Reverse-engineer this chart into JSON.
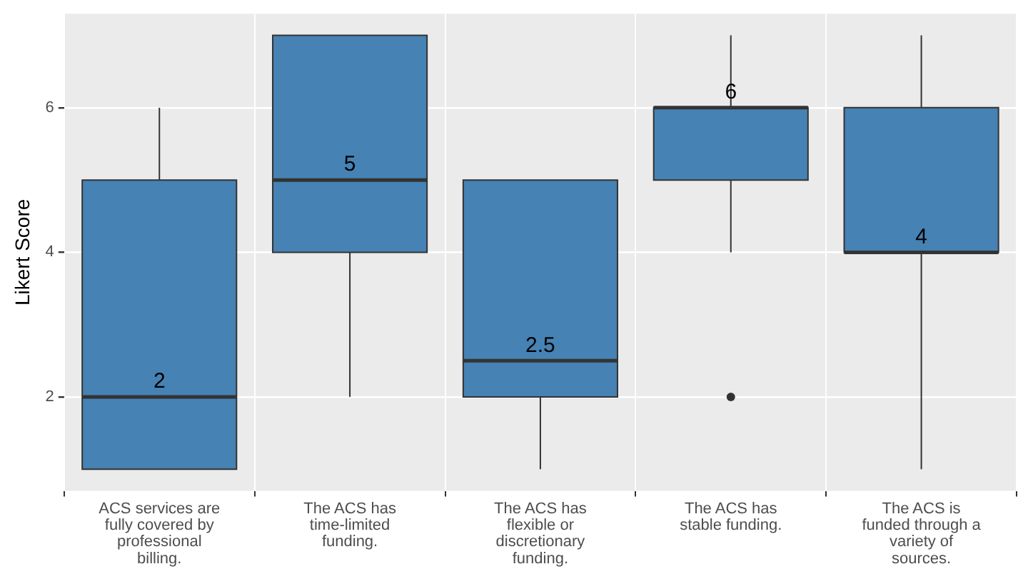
{
  "chart_data": {
    "type": "box",
    "ylabel": "Likert Score",
    "categories": [
      "ACS services are fully covered by professional billing.",
      "The ACS has time-limited funding.",
      "The ACS has flexible or discretionary funding.",
      "The ACS has stable funding.",
      "The ACS is funded through a variety of sources."
    ],
    "boxes": [
      {
        "low": 1,
        "q1": 1,
        "median": 2,
        "q3": 5,
        "high": 6
      },
      {
        "low": 2,
        "q1": 4,
        "median": 5,
        "q3": 7,
        "high": 7
      },
      {
        "low": 1,
        "q1": 2,
        "median": 2.5,
        "q3": 5,
        "high": 5
      },
      {
        "low": 4,
        "q1": 5,
        "median": 6,
        "q3": 6,
        "high": 7,
        "outliers": [
          2
        ]
      },
      {
        "low": 1,
        "q1": 4,
        "median": 4,
        "q3": 6,
        "high": 7
      }
    ],
    "value_labels": [
      "2",
      "5",
      "2.5",
      "6",
      "4"
    ],
    "color": "#4682b4",
    "ylim": [
      0.7,
      7.3
    ],
    "yticks": [
      2,
      4,
      6
    ],
    "grid": true,
    "legend": false
  }
}
